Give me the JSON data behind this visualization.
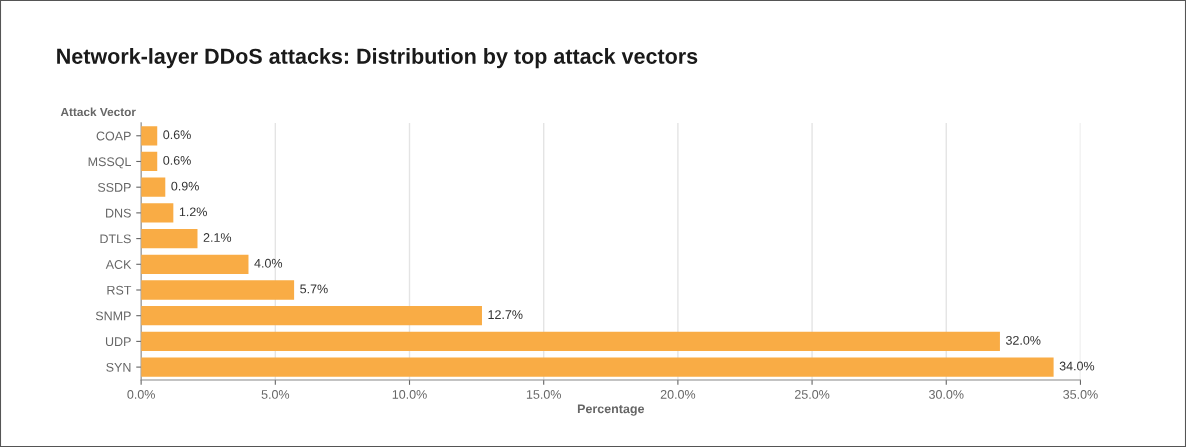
{
  "chart_data": {
    "type": "bar",
    "orientation": "horizontal",
    "title": "Network-layer DDoS attacks: Distribution by top attack vectors",
    "ylabel": "Attack Vector",
    "xlabel": "Percentage",
    "categories": [
      "COAP",
      "MSSQL",
      "SSDP",
      "DNS",
      "DTLS",
      "ACK",
      "RST",
      "SNMP",
      "UDP",
      "SYN"
    ],
    "values": [
      0.6,
      0.6,
      0.9,
      1.2,
      2.1,
      4.0,
      5.7,
      12.7,
      32.0,
      34.0
    ],
    "value_labels": [
      "0.6%",
      "0.6%",
      "0.9%",
      "1.2%",
      "2.1%",
      "4.0%",
      "5.7%",
      "12.7%",
      "32.0%",
      "34.0%"
    ],
    "color": "#f9ac45",
    "xlim": [
      0,
      35
    ],
    "xticks": [
      {
        "value": 0,
        "label": "0.0%"
      },
      {
        "value": 5,
        "label": "5.0%"
      },
      {
        "value": 10,
        "label": "10.0%"
      },
      {
        "value": 15,
        "label": "15.0%"
      },
      {
        "value": 20,
        "label": "20.0%"
      },
      {
        "value": 25,
        "label": "25.0%"
      },
      {
        "value": 30,
        "label": "30.0%"
      },
      {
        "value": 35,
        "label": "35.0%"
      }
    ],
    "grid": "x"
  }
}
